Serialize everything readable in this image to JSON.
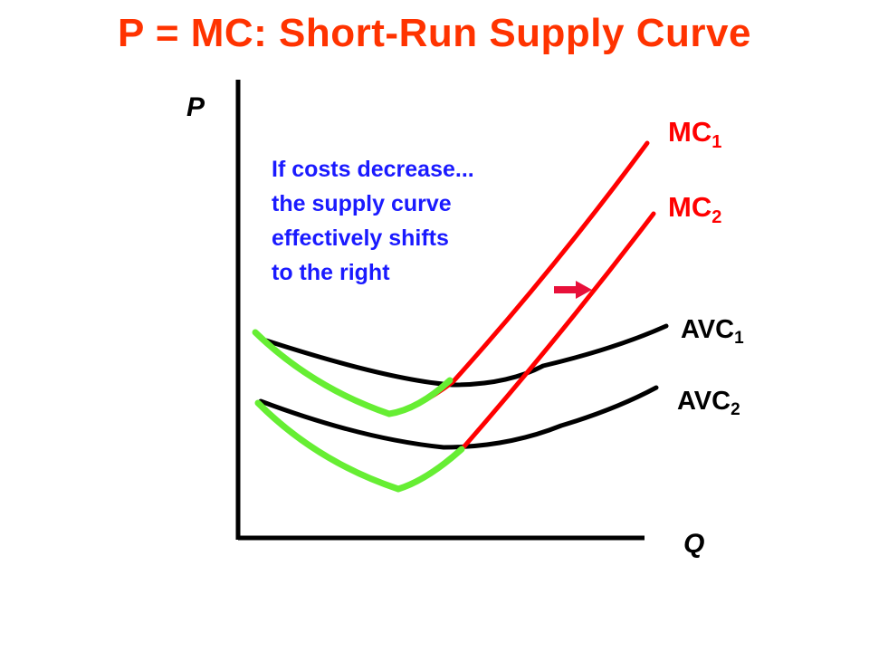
{
  "title": "P = MC: Short-Run Supply Curve",
  "axes": {
    "y_label": "P",
    "x_label": "Q"
  },
  "curves": {
    "mc1": {
      "base": "MC",
      "sub": "1"
    },
    "mc2": {
      "base": "MC",
      "sub": "2"
    },
    "avc1": {
      "base": "AVC",
      "sub": "1"
    },
    "avc2": {
      "base": "AVC",
      "sub": "2"
    }
  },
  "annotation": {
    "lines": [
      "If costs decrease...",
      "the supply curve",
      "effectively shifts",
      "to the right"
    ]
  },
  "colors": {
    "title": "#ff3300",
    "mc": "#ff0000",
    "avc": "#000000",
    "supply_highlight": "#66ee33",
    "annotation": "#1a1aff",
    "shift_arrow": "#e8103a",
    "axis": "#000000"
  },
  "icons": {
    "shift_arrow": "right-arrow-icon"
  }
}
